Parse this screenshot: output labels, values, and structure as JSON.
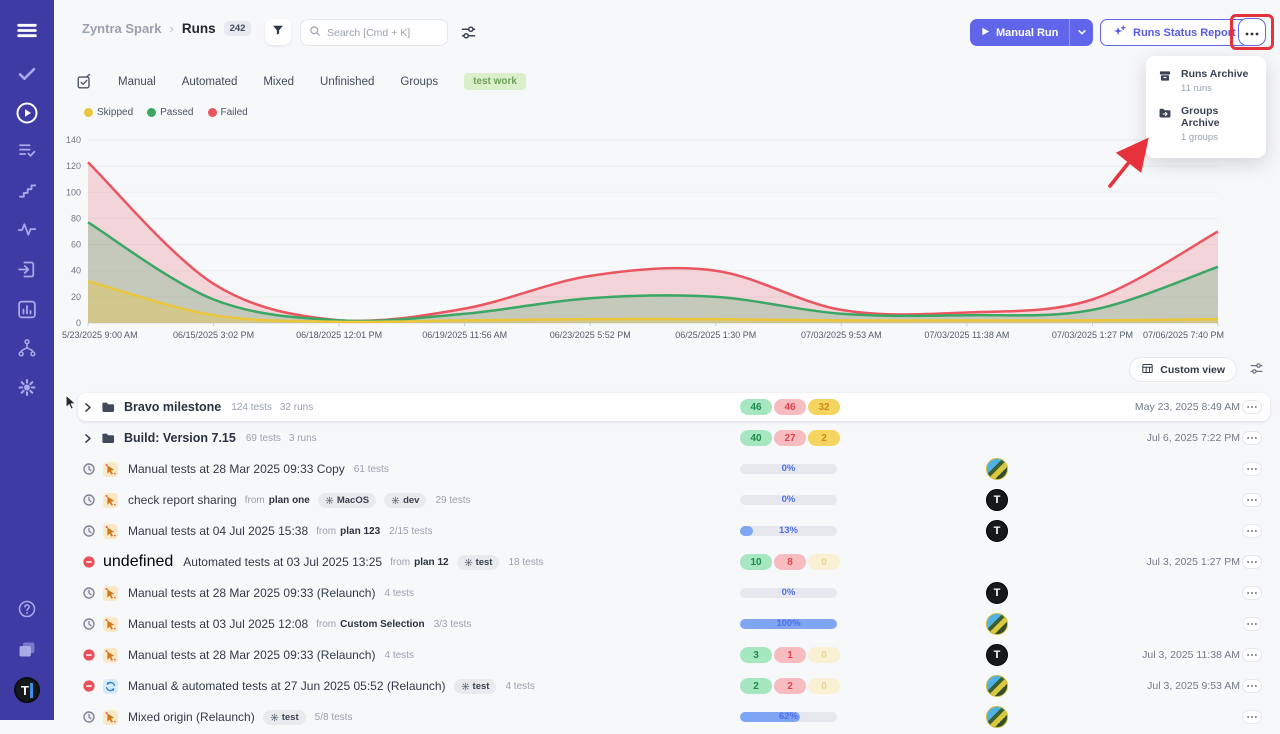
{
  "header": {
    "breadcrumb": {
      "project": "Zyntra Spark",
      "separator": "›",
      "section": "Runs",
      "count": "242"
    },
    "search": {
      "placeholder": "Search [Cmd + K]"
    },
    "buttons": {
      "manual_run": "Manual Run",
      "runs_status_report": "Runs Status Report"
    }
  },
  "dropdown": {
    "items": [
      {
        "icon": "archive-icon",
        "label": "Runs Archive",
        "sub": "11 runs"
      },
      {
        "icon": "folder-move-icon",
        "label": "Groups Archive",
        "sub": "1 groups"
      }
    ]
  },
  "sidebar": {
    "top": [
      {
        "name": "menu-toggle",
        "icon": "hamburger"
      },
      {
        "name": "tests",
        "icon": "check"
      },
      {
        "name": "runs",
        "icon": "play-circle",
        "active": true
      },
      {
        "name": "suites",
        "icon": "list-check"
      },
      {
        "name": "milestones",
        "icon": "stairs"
      },
      {
        "name": "activity",
        "icon": "pulse"
      },
      {
        "name": "import",
        "icon": "import"
      },
      {
        "name": "analytics",
        "icon": "chart-box"
      },
      {
        "name": "workflow",
        "icon": "branch"
      },
      {
        "name": "settings",
        "icon": "gear"
      }
    ],
    "bottom": [
      {
        "name": "help",
        "icon": "help"
      },
      {
        "name": "projects",
        "icon": "folders"
      },
      {
        "name": "profile",
        "icon": "logo-t",
        "logo_letter": "T"
      }
    ]
  },
  "tabs": {
    "items": [
      "Manual",
      "Automated",
      "Mixed",
      "Unfinished",
      "Groups"
    ],
    "badge": "test work"
  },
  "chart_data": {
    "type": "area",
    "series": [
      {
        "name": "Skipped",
        "color": "#eac63c",
        "fill_opacity": 0.35,
        "values": [
          32,
          6,
          1,
          2,
          3,
          3,
          2,
          2,
          2,
          3
        ]
      },
      {
        "name": "Passed",
        "color": "#3aa765",
        "fill_opacity": 0.25,
        "values": [
          77,
          18,
          2,
          7,
          19,
          20,
          7,
          6,
          10,
          43
        ]
      },
      {
        "name": "Failed",
        "color": "#ea5560",
        "fill_opacity": 0.22,
        "values": [
          123,
          30,
          2,
          11,
          36,
          40,
          10,
          8,
          18,
          70
        ]
      }
    ],
    "x_labels": [
      "5/23/2025 9:00 AM",
      "06/15/2025 3:02 PM",
      "06/18/2025 12:01 PM",
      "06/19/2025 11:56 AM",
      "06/23/2025 5:52 PM",
      "06/25/2025 1:30 PM",
      "07/03/2025 9:53 AM",
      "07/03/2025 11:38 AM",
      "07/03/2025 1:27 PM",
      "07/06/2025 7:40 PM"
    ],
    "ylim": [
      0,
      140
    ],
    "y_ticks": [
      0,
      20,
      40,
      60,
      80,
      100,
      120,
      140
    ],
    "grid": true,
    "legend_position": "top-left"
  },
  "custom_view": {
    "label": "Custom view"
  },
  "table": {
    "from_label": "from",
    "rows": [
      {
        "type": "group",
        "highlight": true,
        "cursor": true,
        "title": "Bravo milestone",
        "meta": [
          "124 tests",
          "32 runs"
        ],
        "badges": {
          "passed": "46",
          "failed": "46",
          "skipped": "32"
        },
        "date": "May 23, 2025 8:49 AM"
      },
      {
        "type": "group",
        "title": "Build: Version 7.15",
        "meta": [
          "69 tests",
          "3 runs"
        ],
        "badges": {
          "passed": "40",
          "failed": "27",
          "skipped": "2"
        },
        "date": "Jul 6, 2025 7:22 PM"
      },
      {
        "type": "run",
        "status": "scheduled",
        "kind": "manual",
        "title": "Manual tests at 28 Mar 2025 09:33 Copy",
        "tests": "61 tests",
        "progress": "0%",
        "avatar": "photo"
      },
      {
        "type": "run",
        "status": "scheduled",
        "kind": "manual",
        "title": "check report sharing",
        "from": "plan one",
        "params": [
          "MacOS",
          "dev"
        ],
        "tests": "29 tests",
        "progress": "0%",
        "avatar": "t-logo"
      },
      {
        "type": "run",
        "status": "scheduled",
        "kind": "manual",
        "title": "Manual tests at 04 Jul 2025 15:38",
        "from": "plan 123",
        "tests": "2/15 tests",
        "progress": "13%",
        "avatar": "t-logo"
      },
      {
        "type": "run",
        "status": "failed",
        "kind": "automated",
        "title": "Automated tests at 03 Jul 2025 13:25",
        "from": "plan 12",
        "params": [
          "test"
        ],
        "tests": "18 tests",
        "badges": {
          "passed": "10",
          "failed": "8",
          "skipped": "0",
          "skipped_faded": true
        },
        "date": "Jul 3, 2025 1:27 PM"
      },
      {
        "type": "run",
        "status": "scheduled",
        "kind": "manual",
        "title": "Manual tests at 28 Mar 2025 09:33 (Relaunch)",
        "tests": "4 tests",
        "progress": "0%",
        "avatar": "t-logo"
      },
      {
        "type": "run",
        "status": "scheduled",
        "kind": "manual",
        "title": "Manual tests at 03 Jul 2025 12:08",
        "from": "Custom Selection",
        "tests": "3/3 tests",
        "progress": "100%",
        "avatar": "photo"
      },
      {
        "type": "run",
        "status": "failed",
        "kind": "manual",
        "title": "Manual tests at 28 Mar 2025 09:33 (Relaunch)",
        "tests": "4 tests",
        "badges": {
          "passed": "3",
          "failed": "1",
          "skipped": "0",
          "skipped_faded": true
        },
        "avatar": "t-logo",
        "date": "Jul 3, 2025 11:38 AM"
      },
      {
        "type": "run",
        "status": "failed",
        "kind": "mixed",
        "title": "Manual & automated tests at 27 Jun 2025 05:52 (Relaunch)",
        "params": [
          "test"
        ],
        "tests": "4 tests",
        "badges": {
          "passed": "2",
          "failed": "2",
          "skipped": "0",
          "skipped_faded": true
        },
        "avatar": "photo",
        "date": "Jul 3, 2025 9:53 AM"
      },
      {
        "type": "run",
        "status": "scheduled",
        "kind": "manual",
        "title": "Mixed origin (Relaunch)",
        "params": [
          "test"
        ],
        "tests": "5/8 tests",
        "progress": "62%",
        "avatar": "photo"
      }
    ]
  }
}
